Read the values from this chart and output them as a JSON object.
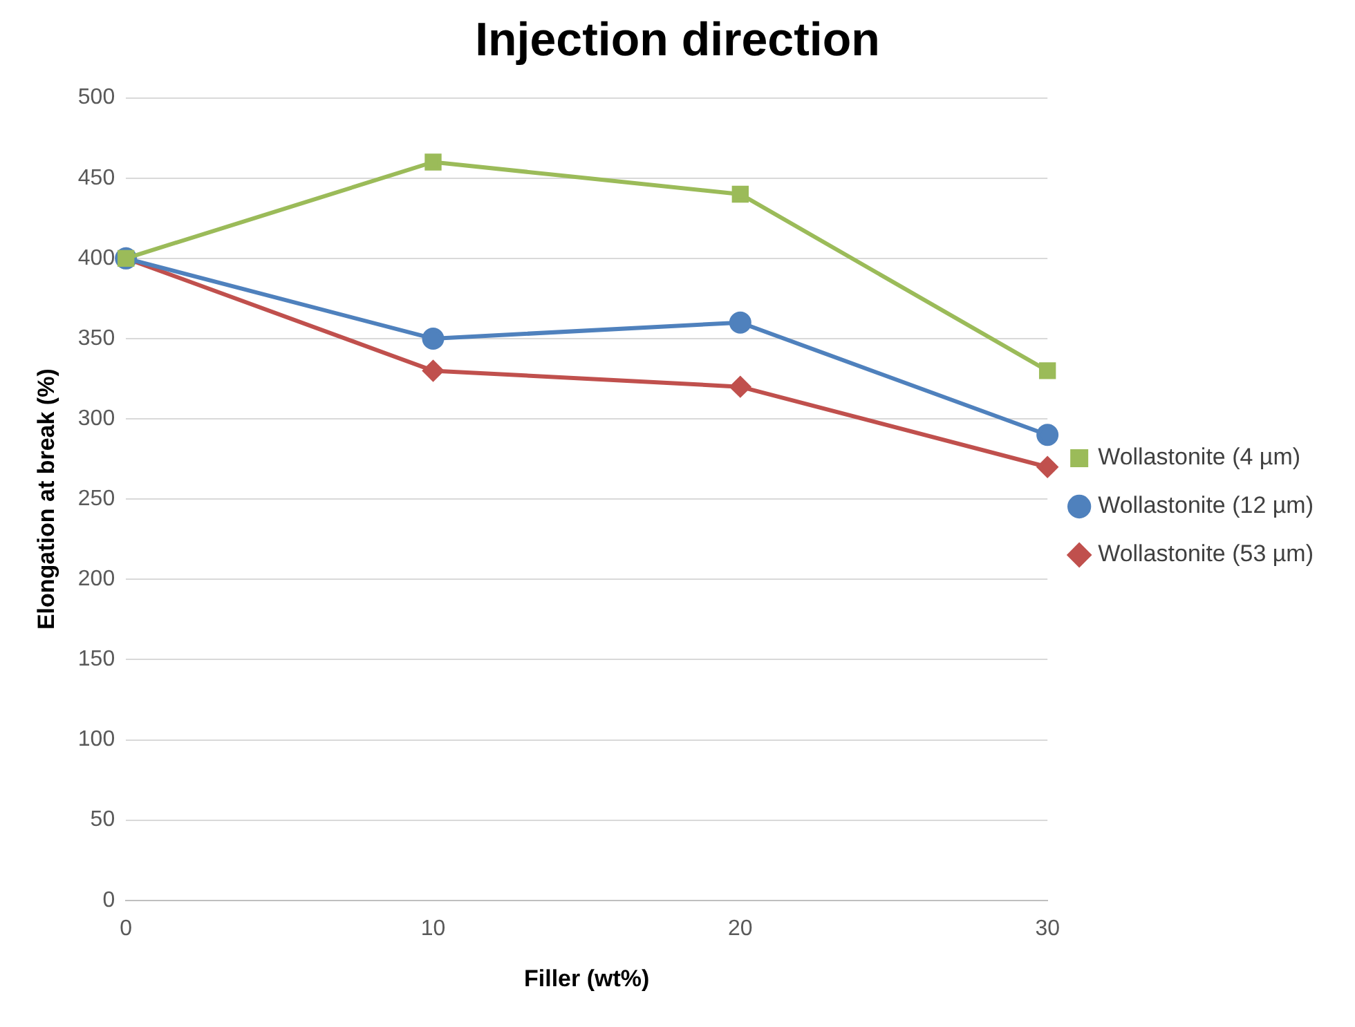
{
  "chart_data": {
    "type": "line",
    "title": "Injection direction",
    "xlabel": "Filler (wt%)",
    "ylabel": "Elongation at break (%)",
    "x": [
      0,
      10,
      20,
      30
    ],
    "xlim": [
      0,
      30
    ],
    "xticks": [
      0,
      10,
      20,
      30
    ],
    "ylim": [
      0,
      500
    ],
    "yticks": [
      0,
      50,
      100,
      150,
      200,
      250,
      300,
      350,
      400,
      450,
      500
    ],
    "grid": "y",
    "legend": "right",
    "line_style": "solid",
    "series": [
      {
        "name": "Wollastonite (4 µm)",
        "color": "#9bbb59",
        "marker": "square",
        "values": [
          400,
          460,
          440,
          330
        ]
      },
      {
        "name": "Wollastonite (12 µm)",
        "color": "#4f81bd",
        "marker": "circle",
        "values": [
          400,
          350,
          360,
          290
        ]
      },
      {
        "name": "Wollastonite (53 µm)",
        "color": "#c0504d",
        "marker": "diamond",
        "values": [
          400,
          330,
          320,
          270
        ]
      }
    ]
  }
}
